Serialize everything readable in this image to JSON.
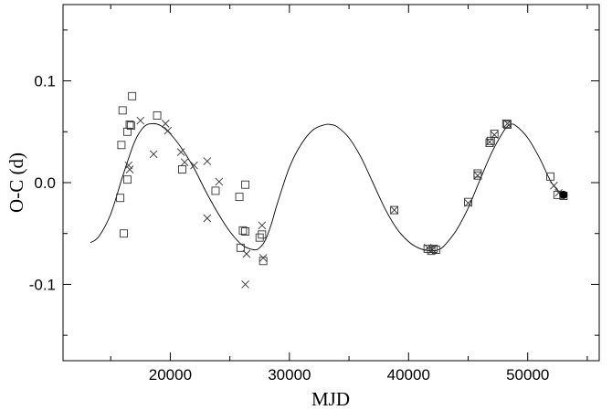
{
  "chart_data": {
    "type": "scatter",
    "xlabel": "MJD",
    "ylabel": "O-C (d)",
    "xlim": [
      11000,
      56000
    ],
    "ylim": [
      -0.175,
      0.175
    ],
    "x_ticks": [
      20000,
      30000,
      40000,
      50000
    ],
    "y_ticks": [
      -0.1,
      0.0,
      0.1
    ],
    "y_tick_labels": [
      "-0.1",
      "0.0",
      "0.1"
    ],
    "grid": false,
    "legend": "none",
    "series": [
      {
        "marker": "square",
        "points": [
          [
            15800,
            -0.015
          ],
          [
            15900,
            0.037
          ],
          [
            16000,
            0.071
          ],
          [
            16100,
            -0.05
          ],
          [
            16400,
            0.003
          ],
          [
            16400,
            0.05
          ],
          [
            16600,
            0.057
          ],
          [
            16700,
            0.056
          ],
          [
            16800,
            0.085
          ],
          [
            18900,
            0.066
          ],
          [
            21000,
            0.013
          ],
          [
            23800,
            -0.008
          ],
          [
            25800,
            -0.014
          ],
          [
            25900,
            -0.064
          ],
          [
            26100,
            -0.047
          ],
          [
            26300,
            -0.048
          ],
          [
            26300,
            -0.002
          ],
          [
            27500,
            -0.054
          ],
          [
            27700,
            -0.051
          ],
          [
            27800,
            -0.077
          ],
          [
            38800,
            -0.027
          ],
          [
            41600,
            -0.065
          ],
          [
            41900,
            -0.067
          ],
          [
            42100,
            -0.065
          ],
          [
            42300,
            -0.066
          ],
          [
            45000,
            -0.019
          ],
          [
            45800,
            0.007
          ],
          [
            45800,
            0.009
          ],
          [
            46800,
            0.039
          ],
          [
            46900,
            0.041
          ],
          [
            47200,
            0.048
          ],
          [
            48200,
            0.058
          ],
          [
            48300,
            0.057
          ],
          [
            51900,
            0.006
          ],
          [
            52500,
            -0.012
          ],
          [
            53000,
            -0.013
          ]
        ]
      },
      {
        "marker": "cross",
        "points": [
          [
            16500,
            0.017
          ],
          [
            16600,
            0.013
          ],
          [
            17500,
            0.061
          ],
          [
            18600,
            0.028
          ],
          [
            19600,
            0.058
          ],
          [
            19800,
            0.051
          ],
          [
            20900,
            0.03
          ],
          [
            21200,
            0.02
          ],
          [
            22000,
            0.017
          ],
          [
            23100,
            0.021
          ],
          [
            23100,
            -0.035
          ],
          [
            24100,
            0.001
          ],
          [
            26300,
            -0.1
          ],
          [
            26400,
            -0.07
          ],
          [
            27700,
            -0.042
          ],
          [
            27800,
            -0.074
          ],
          [
            38800,
            -0.027
          ],
          [
            41600,
            -0.064
          ],
          [
            42000,
            -0.066
          ],
          [
            45000,
            -0.02
          ],
          [
            45800,
            0.007
          ],
          [
            46800,
            0.04
          ],
          [
            47200,
            0.047
          ],
          [
            48300,
            0.058
          ],
          [
            52200,
            -0.003
          ],
          [
            52600,
            -0.01
          ]
        ]
      },
      {
        "marker": "filled-circle",
        "points": [
          [
            53000,
            -0.012
          ]
        ]
      }
    ],
    "fit_curve": {
      "x": [
        13300,
        14000,
        15000,
        16000,
        17000,
        17800,
        18500,
        19200,
        20000,
        21000,
        22000,
        23000,
        24000,
        25000,
        26000,
        27000,
        27500,
        28000,
        28500,
        29000,
        30000,
        31000,
        32000,
        33000,
        33500,
        34000,
        35000,
        36000,
        37000,
        38000,
        39000,
        40000,
        41000,
        42000,
        42500,
        43000,
        44000,
        45000,
        46000,
        47000,
        48000,
        48500,
        49000,
        50000,
        51000,
        52000,
        53000
      ],
      "y": [
        -0.059,
        -0.053,
        -0.031,
        0.006,
        0.04,
        0.055,
        0.058,
        0.056,
        0.048,
        0.033,
        0.014,
        -0.009,
        -0.03,
        -0.048,
        -0.061,
        -0.066,
        -0.064,
        -0.056,
        -0.04,
        -0.02,
        0.015,
        0.038,
        0.052,
        0.057,
        0.057,
        0.055,
        0.044,
        0.025,
        0.0,
        -0.025,
        -0.045,
        -0.058,
        -0.065,
        -0.067,
        -0.066,
        -0.062,
        -0.047,
        -0.025,
        0.003,
        0.03,
        0.051,
        0.057,
        0.056,
        0.044,
        0.024,
        0.0,
        -0.013
      ]
    }
  }
}
